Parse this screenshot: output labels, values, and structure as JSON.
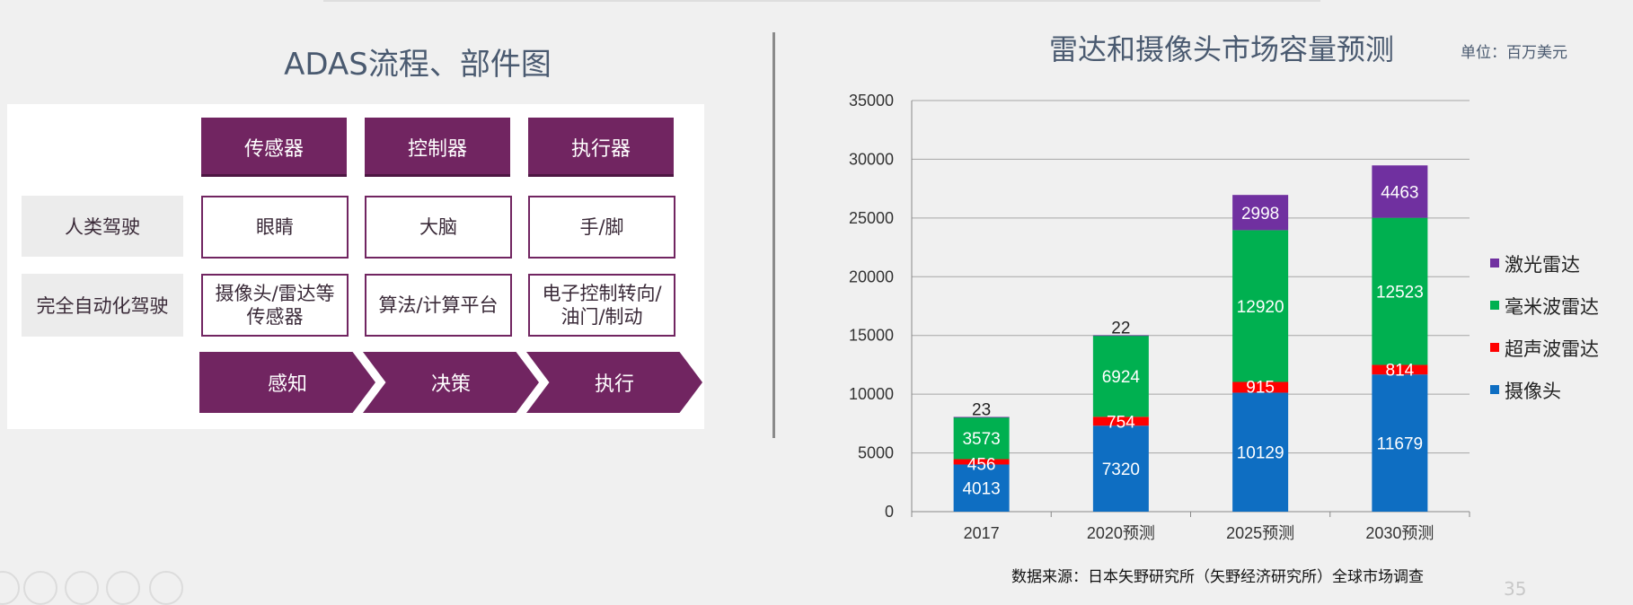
{
  "left": {
    "title": "ADAS流程、部件图",
    "headers": [
      "传感器",
      "控制器",
      "执行器"
    ],
    "rows": [
      {
        "label": "人类驾驶",
        "cells": [
          "眼睛",
          "大脑",
          "手/脚"
        ]
      },
      {
        "label": "完全自动化驾驶",
        "cells": [
          "摄像头/雷达等\n传感器",
          "算法/计算平台",
          "电子控制转向/\n油门/制动"
        ]
      }
    ],
    "steps": [
      "感知",
      "决策",
      "执行"
    ]
  },
  "right": {
    "title": "雷达和摄像头市场容量预测",
    "unit": "单位：百万美元",
    "source": "数据来源：日本矢野研究所（矢野经济研究所）全球市场调查"
  },
  "page_number": "35",
  "chart_data": {
    "type": "bar",
    "stacked": true,
    "title": "雷达和摄像头市场容量预测",
    "xlabel": "",
    "ylabel": "",
    "ylim": [
      0,
      35000
    ],
    "yticks": [
      0,
      5000,
      10000,
      15000,
      20000,
      25000,
      30000,
      35000
    ],
    "categories": [
      "2017",
      "2020预测",
      "2025预测",
      "2030预测"
    ],
    "grid": true,
    "legend_position": "right",
    "series": [
      {
        "name": "摄像头",
        "color": "#0e6ec2",
        "values": [
          4013,
          7320,
          10129,
          11679
        ]
      },
      {
        "name": "超声波雷达",
        "color": "#ff0000",
        "values": [
          456,
          754,
          915,
          814
        ]
      },
      {
        "name": "毫米波雷达",
        "color": "#00b050",
        "values": [
          3573,
          6924,
          12920,
          12523
        ]
      },
      {
        "name": "激光雷达",
        "color": "#7030a0",
        "values": [
          23,
          22,
          2998,
          4463
        ]
      }
    ],
    "legend_order": [
      "激光雷达",
      "毫米波雷达",
      "超声波雷达",
      "摄像头"
    ]
  }
}
